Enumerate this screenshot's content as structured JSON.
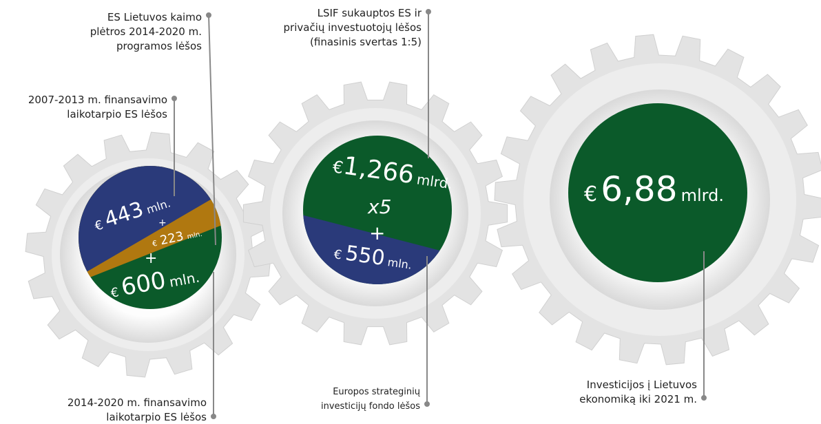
{
  "labels": {
    "rural_fund": [
      "ES Lietuvos kaimo",
      "plėtros 2014-2020 m.",
      "programos lėšos"
    ],
    "eu_2007": [
      "2007-2013 m. finansavimo",
      "laikotarpio ES lėšos"
    ],
    "eu_2014": [
      "2014-2020 m. finansavimo",
      "laikotarpio ES lėšos"
    ],
    "lsif": [
      "LSIF sukauptos ES ir",
      "privačių investuotojų lėšos",
      "(finasinis svertas 1:5)"
    ],
    "efsi": [
      "Europos strateginių",
      "investicijų fondo lėšos"
    ],
    "total": [
      "Investicijos į Lietuvos",
      "ekonomiką iki 2021 m."
    ]
  },
  "gear1": {
    "a_currency": "€",
    "a_amount": "443",
    "a_unit": "mln.",
    "plus1": "+",
    "b_currency": "€",
    "b_amount": "223",
    "b_unit": "mln.",
    "plus2": "+",
    "c_currency": "€",
    "c_amount": "600",
    "c_unit": "mln."
  },
  "gear2": {
    "a_currency": "€",
    "a_amount": "1,266",
    "a_unit": "mlrd.",
    "multiplier": "x5",
    "plus": "+",
    "b_currency": "€",
    "b_amount": "550",
    "b_unit": "mln."
  },
  "gear3": {
    "currency": "€",
    "amount": "6,88",
    "unit": "mlrd."
  }
}
